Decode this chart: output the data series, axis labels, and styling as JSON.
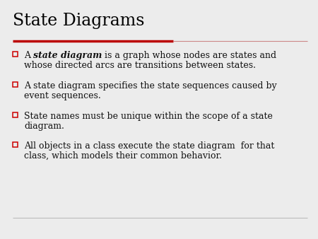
{
  "title": "State Diagrams",
  "background_color": "#ececec",
  "title_color": "#000000",
  "title_fontsize": 17,
  "separator_thick_color": "#bb0000",
  "separator_thin_color": "#cc8888",
  "text_color": "#111111",
  "text_fontsize": 9.0,
  "bullet_color": "#cc0000",
  "bottom_line_color": "#bbbbbb",
  "bullet_items": [
    {
      "prefix": "A ",
      "bold_italic": "state diagram",
      "suffix": " is a graph whose nodes are states and",
      "line2": "whose directed arcs are transitions between states."
    },
    {
      "prefix": "A state diagram specifies the state sequences caused by",
      "bold_italic": "",
      "suffix": "",
      "line2": "event sequences."
    },
    {
      "prefix": "State names must be unique within the scope of a state",
      "bold_italic": "",
      "suffix": "",
      "line2": "diagram."
    },
    {
      "prefix": "All objects in a class execute the state diagram  for that",
      "bold_italic": "",
      "suffix": "",
      "line2": "class, which models their common behavior."
    }
  ]
}
